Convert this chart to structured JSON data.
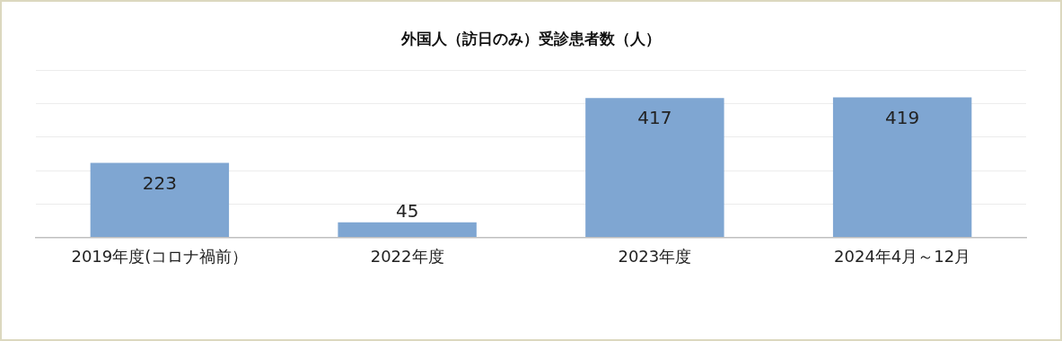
{
  "chart_data": {
    "type": "bar",
    "title": "外国人（訪日のみ）受診患者数（人）",
    "categories": [
      "2019年度(コロナ禍前）",
      "2022年度",
      "2023年度",
      "2024年4月～12月"
    ],
    "values": [
      223,
      45,
      417,
      419
    ],
    "color": "#7fa6d2",
    "ylim": [
      0,
      500
    ],
    "yticks": [
      {
        "value": 0,
        "label": null
      },
      {
        "value": 100,
        "label": null
      },
      {
        "value": 200,
        "label": null
      },
      {
        "value": 300,
        "label": null
      },
      {
        "value": 400,
        "label": null
      },
      {
        "value": 500,
        "label": null
      }
    ],
    "grid": "y",
    "tick_labels": "x",
    "data_labels": true
  }
}
